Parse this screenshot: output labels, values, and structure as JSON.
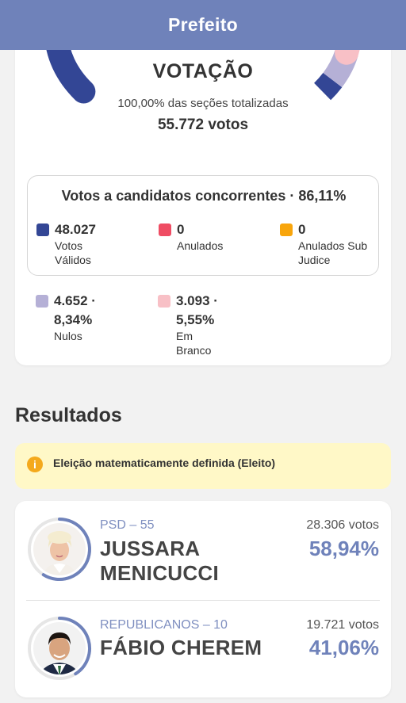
{
  "header": {
    "title": "Prefeito"
  },
  "votacao": {
    "title": "VOTAÇÃO",
    "subtitle": "100,00% das seções totalizadas",
    "total": "55.772 votos",
    "gauge_shares": {
      "validos": 86.11,
      "nulos": 8.34,
      "brancos": 5.55
    },
    "colors": {
      "validos": "#334695",
      "nulos": "#b5b0d6",
      "brancos": "#f8c0c6",
      "anulados": "#ef4c63",
      "sub_judice": "#f8a50c"
    }
  },
  "concorrentes": {
    "title": "Votos a candidatos concorrentes · 86,11%",
    "validos": {
      "value": "48.027",
      "label": "Votos Válidos"
    },
    "anulados": {
      "value": "0",
      "label": "Anulados"
    },
    "sub_judice": {
      "value": "0",
      "label_line1": "Anulados Sub",
      "label_line2": "Judice"
    }
  },
  "outros": {
    "nulos": {
      "value_line1": "4.652 ·",
      "value_line2": "8,34%",
      "label": "Nulos"
    },
    "brancos": {
      "value_line1": "3.093 ·",
      "value_line2": "5,55%",
      "label": "Em Branco"
    }
  },
  "resultados": {
    "title": "Resultados",
    "alert": "Eleição matematicamente definida (Eleito)",
    "alert_icon": "info-icon",
    "candidates": [
      {
        "party": "PSD – 55",
        "name_line1": "JUSSARA",
        "name_line2": "MENICUCCI",
        "votes": "28.306 votos",
        "percent": "58,94%",
        "share": 58.94
      },
      {
        "party": "REPUBLICANOS – 10",
        "name_line1": "FÁBIO CHEREM",
        "votes": "19.721 votos",
        "percent": "41,06%",
        "share": 41.06
      }
    ]
  }
}
